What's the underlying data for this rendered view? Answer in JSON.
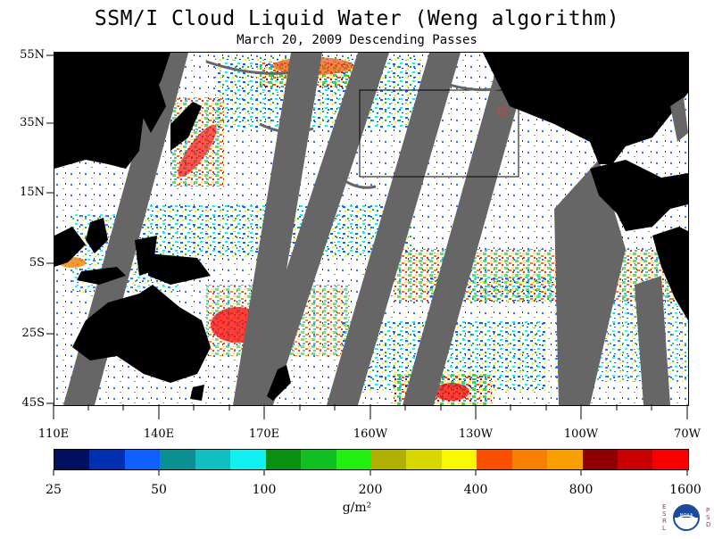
{
  "title": "SSM/I Cloud Liquid Water (Weng algorithm)",
  "subtitle": "March 20, 2009  Descending Passes",
  "lat_labels": [
    "55N",
    "35N",
    "15N",
    "5S",
    "25S",
    "45S"
  ],
  "lon_labels": [
    "110E",
    "140E",
    "170E",
    "160W",
    "130W",
    "100W",
    "70W"
  ],
  "colorbar": {
    "colors": [
      "#001060",
      "#0030b0",
      "#1060ff",
      "#0a9090",
      "#10c0c0",
      "#10f0f0",
      "#0a9010",
      "#10c020",
      "#20f010",
      "#b0b000",
      "#d8d800",
      "#f8f800",
      "#f85000",
      "#f88000",
      "#f8a000",
      "#900000",
      "#c80000",
      "#f80000"
    ],
    "labels": [
      "25",
      "50",
      "100",
      "200",
      "400",
      "800",
      "1600"
    ],
    "unit": "g/m²"
  },
  "logo": {
    "left_letters": "ESRL",
    "right_letters": "PSD",
    "center_text": "NOAA"
  }
}
